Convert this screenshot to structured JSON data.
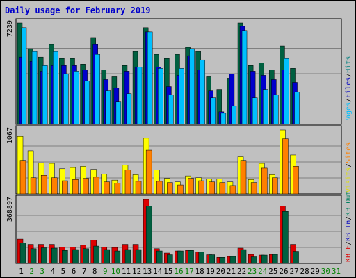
{
  "title": "Daily usage for February 2019",
  "chart_data": [
    {
      "type": "bar",
      "panel": "top",
      "ymax_label": "7239",
      "ymax": 7239,
      "legend": [
        {
          "label": "Pages",
          "color": "#00c0ff"
        },
        {
          "label": "/",
          "color": "#000000"
        },
        {
          "label": "Files",
          "color": "#0000c0"
        },
        {
          "label": "/",
          "color": "#000000"
        },
        {
          "label": "Hits",
          "color": "#008080"
        }
      ],
      "series": [
        {
          "name": "Hits",
          "color": "#006040",
          "values": [
            7239,
            5400,
            4800,
            5700,
            4700,
            4700,
            4300,
            6200,
            3900,
            3400,
            4200,
            5200,
            6900,
            5000,
            4700,
            5000,
            5500,
            5200,
            3400,
            2500,
            3300,
            7239,
            4200,
            4400,
            3900,
            5600,
            4000,
            0
          ]
        },
        {
          "name": "Files",
          "color": "#0000cc",
          "values": [
            4800,
            4500,
            3800,
            4200,
            4200,
            4200,
            3900,
            5700,
            3200,
            2600,
            3800,
            4100,
            6600,
            4100,
            2700,
            3500,
            4900,
            3900,
            2400,
            900,
            3600,
            7000,
            3800,
            3500,
            3200,
            3900,
            3000,
            0
          ]
        },
        {
          "name": "Pages",
          "color": "#00c0ff",
          "values": [
            6900,
            5200,
            4200,
            5200,
            3600,
            3800,
            3100,
            5000,
            2400,
            1600,
            2200,
            4100,
            6600,
            4000,
            2100,
            4000,
            5400,
            4600,
            1900,
            800,
            1300,
            6700,
            1900,
            2500,
            2100,
            4700,
            2300,
            0
          ]
        }
      ]
    },
    {
      "type": "bar",
      "panel": "middle",
      "ymax_label": "1067",
      "ymax": 1067,
      "legend": [
        {
          "label": "Visits",
          "color": "#e0e000"
        },
        {
          "label": "/",
          "color": "#000000"
        },
        {
          "label": "Sites",
          "color": "#ff8000"
        }
      ],
      "series": [
        {
          "name": "Visits",
          "color": "#ffff00",
          "values": [
            960,
            720,
            520,
            510,
            420,
            440,
            460,
            410,
            330,
            230,
            480,
            320,
            930,
            400,
            260,
            200,
            300,
            270,
            250,
            250,
            200,
            620,
            240,
            510,
            320,
            1067,
            650,
            0
          ]
        },
        {
          "name": "Sites",
          "color": "#ff8000",
          "values": [
            560,
            270,
            310,
            270,
            220,
            240,
            260,
            280,
            200,
            180,
            400,
            210,
            730,
            210,
            190,
            150,
            260,
            220,
            200,
            190,
            140,
            560,
            190,
            430,
            270,
            920,
            460,
            0
          ]
        }
      ]
    },
    {
      "type": "bar",
      "panel": "bottom",
      "ymax_label": "368897",
      "ymax": 368897,
      "legend": [
        {
          "label": "KB F",
          "color": "#e00000"
        },
        {
          "label": "/",
          "color": "#000000"
        },
        {
          "label": "KB In",
          "color": "#0000c0"
        },
        {
          "label": "/",
          "color": "#000000"
        },
        {
          "label": "KB Out",
          "color": "#008060"
        }
      ],
      "series": [
        {
          "name": "KB F",
          "color": "#dd0000",
          "values": [
            140000,
            110000,
            110000,
            110000,
            95000,
            95000,
            105000,
            135000,
            95000,
            92000,
            110000,
            110000,
            368897,
            85000,
            60000,
            72000,
            75000,
            65000,
            50000,
            35000,
            40000,
            88000,
            52000,
            48000,
            52000,
            330000,
            110000,
            0
          ]
        },
        {
          "name": "KB Out",
          "color": "#006040",
          "values": [
            118000,
            85000,
            90000,
            88000,
            75000,
            80000,
            85000,
            100000,
            80000,
            72000,
            80000,
            80000,
            330000,
            72000,
            50000,
            72000,
            75000,
            65000,
            50000,
            35000,
            40000,
            80000,
            38000,
            48000,
            52000,
            300000,
            70000,
            0
          ]
        }
      ]
    }
  ],
  "days": [
    "1",
    "2",
    "3",
    "4",
    "5",
    "6",
    "7",
    "8",
    "9",
    "10",
    "11",
    "12",
    "13",
    "14",
    "15",
    "16",
    "17",
    "18",
    "19",
    "20",
    "21",
    "22",
    "23",
    "24",
    "25",
    "26",
    "27",
    "28",
    "29",
    "30",
    "31"
  ],
  "weekend_days": [
    "2",
    "3",
    "9",
    "10",
    "16",
    "17",
    "23",
    "24",
    "30",
    "31"
  ],
  "colors": {
    "plot_bg": "#c0c0c0",
    "weekday_label": "#000000",
    "weekend_label": "#008000"
  }
}
